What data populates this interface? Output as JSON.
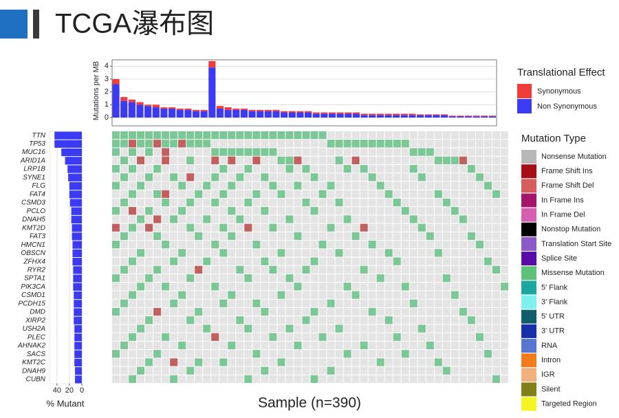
{
  "header": {
    "title": "TCGA瀑布图"
  },
  "chart_data": {
    "type": "oncoplot",
    "top": {
      "ylabel": "Mutations per MB",
      "ylim": [
        0,
        4.5
      ],
      "yticks": [
        0,
        1,
        2,
        3,
        4
      ],
      "grid": true,
      "series": [
        {
          "name": "Non Synonymous",
          "color": "#3b3bf5",
          "values": [
            2.6,
            1.3,
            1.2,
            1.0,
            0.9,
            0.8,
            0.7,
            0.7,
            0.6,
            0.6,
            0.5,
            0.5,
            3.9,
            0.7,
            0.6,
            0.6,
            0.6,
            0.5,
            0.5,
            0.5,
            0.5,
            0.4,
            0.4,
            0.4,
            0.4,
            0.3,
            0.3,
            0.3,
            0.3,
            0.3,
            0.3,
            0.2,
            0.2,
            0.2,
            0.2,
            0.2,
            0.2,
            0.2,
            0.2,
            0.2,
            0.2,
            0.2,
            0.1,
            0.1,
            0.1,
            0.1,
            0.1,
            0.1
          ]
        },
        {
          "name": "Synonymous",
          "color": "#f23b3b",
          "values": [
            0.4,
            0.3,
            0.2,
            0.2,
            0.1,
            0.2,
            0.1,
            0.1,
            0.1,
            0.1,
            0.1,
            0.1,
            0.5,
            0.2,
            0.2,
            0.1,
            0.1,
            0.1,
            0.1,
            0.1,
            0.1,
            0.1,
            0.1,
            0.1,
            0.1,
            0.1,
            0.1,
            0.1,
            0.1,
            0.1,
            0.1,
            0.1,
            0.1,
            0.1,
            0.1,
            0.1,
            0.1,
            0.1,
            0.05,
            0.05,
            0.05,
            0.05,
            0.05,
            0.05,
            0.05,
            0.05,
            0.05,
            0.05
          ]
        }
      ]
    },
    "legend_effect": {
      "title": "Translational Effect",
      "items": [
        {
          "name": "Synonymous",
          "color": "#f23b3b"
        },
        {
          "name": "Non Synonymous",
          "color": "#3b3bf5"
        }
      ]
    },
    "legend_type": {
      "title": "Mutation Type",
      "items": [
        {
          "name": "Nonsense Mutation",
          "color": "#b8b8b8"
        },
        {
          "name": "Frame Shift Ins",
          "color": "#a50f15"
        },
        {
          "name": "Frame Shift Del",
          "color": "#d45d5d"
        },
        {
          "name": "In Frame Ins",
          "color": "#a3156b"
        },
        {
          "name": "In Frame Del",
          "color": "#d55fb0"
        },
        {
          "name": "Nonstop Mutation",
          "color": "#000000"
        },
        {
          "name": "Translation Start Site",
          "color": "#8b59c8"
        },
        {
          "name": "Splice Site",
          "color": "#5a0ca6"
        },
        {
          "name": "Missense Mutation",
          "color": "#5ec17a"
        },
        {
          "name": "5' Flank",
          "color": "#1ea6a0"
        },
        {
          "name": "3' Flank",
          "color": "#7ef0ef"
        },
        {
          "name": "5' UTR",
          "color": "#0f5e6a"
        },
        {
          "name": "3' UTR",
          "color": "#1530a8"
        },
        {
          "name": "RNA",
          "color": "#5676d0"
        },
        {
          "name": "Intron",
          "color": "#f27b1d"
        },
        {
          "name": "IGR",
          "color": "#f1b17c"
        },
        {
          "name": "Silent",
          "color": "#808019"
        },
        {
          "name": "Targeted Region",
          "color": "#f5f524"
        }
      ]
    },
    "genes": [
      "TTN",
      "TP53",
      "MUC16",
      "ARID1A",
      "LRP1B",
      "SYNE1",
      "FLG",
      "FAT4",
      "CSMD3",
      "PCLO",
      "DNAH5",
      "KMT2D",
      "FAT3",
      "HMCN1",
      "OBSCN",
      "ZFHX4",
      "RYR2",
      "SPTA1",
      "PIK3CA",
      "CSMD1",
      "PCDH15",
      "DMD",
      "XIRP2",
      "USH2A",
      "PLEC",
      "AHNAK2",
      "SACS",
      "KMT2C",
      "DNAH9",
      "CUBN"
    ],
    "percent_mutant": [
      44,
      44,
      33,
      27,
      23,
      22,
      20,
      20,
      19,
      17,
      17,
      16,
      16,
      15,
      15,
      15,
      14,
      14,
      14,
      13,
      13,
      13,
      13,
      12,
      12,
      12,
      12,
      12,
      11,
      11
    ],
    "bar_color": "#3b3bf5",
    "xlabel_left": "% Mutant",
    "xlim_left": [
      52,
      0
    ],
    "xticks_left": [
      40,
      20,
      0
    ],
    "xlabel": "Sample (n=390)",
    "missense_color": "#7cc796",
    "frameshift_color": "#c25f5f",
    "missense": [
      [
        0,
        1,
        2,
        3,
        4,
        5,
        6,
        7,
        8,
        9,
        10,
        11,
        12,
        13,
        14,
        15,
        16,
        17,
        18,
        19,
        20,
        21,
        22,
        23,
        24,
        25
      ],
      [
        0,
        1,
        3,
        4,
        6,
        7,
        9,
        10,
        11,
        26,
        27,
        28,
        29,
        30,
        31,
        32,
        33,
        34,
        35
      ],
      [
        0,
        2,
        4,
        12,
        13,
        14,
        15,
        16,
        17,
        18,
        19,
        36,
        37,
        38
      ],
      [
        1,
        9,
        20,
        21,
        27,
        39,
        40,
        41
      ],
      [
        0,
        2,
        5,
        13,
        16,
        21,
        23,
        28,
        30,
        36,
        43
      ],
      [
        1,
        4,
        7,
        12,
        15,
        18,
        24,
        31,
        37,
        44
      ],
      [
        0,
        3,
        8,
        11,
        14,
        19,
        22,
        26,
        32,
        45
      ],
      [
        2,
        5,
        10,
        13,
        17,
        20,
        25,
        33,
        39,
        46
      ],
      [
        1,
        6,
        9,
        12,
        16,
        23,
        27,
        34,
        40
      ],
      [
        0,
        4,
        8,
        14,
        18,
        24,
        35,
        41
      ],
      [
        3,
        7,
        11,
        15,
        21,
        28,
        36,
        42
      ],
      [
        2,
        9,
        13,
        19,
        26,
        37
      ],
      [
        1,
        5,
        10,
        14,
        22,
        29,
        38,
        43
      ],
      [
        0,
        6,
        12,
        17,
        25,
        31,
        44
      ],
      [
        3,
        8,
        13,
        20,
        27,
        33,
        39
      ],
      [
        2,
        7,
        11,
        18,
        24,
        34,
        45
      ],
      [
        1,
        5,
        15,
        19,
        23,
        30,
        46
      ],
      [
        0,
        4,
        9,
        16,
        21,
        32,
        40
      ],
      [
        3,
        6,
        12,
        22,
        28,
        35,
        47
      ],
      [
        2,
        8,
        14,
        20,
        29,
        41
      ],
      [
        1,
        7,
        13,
        17,
        26,
        36
      ],
      [
        0,
        10,
        18,
        24,
        31,
        42
      ],
      [
        4,
        9,
        15,
        23,
        33,
        43
      ],
      [
        3,
        11,
        16,
        21,
        27,
        37
      ],
      [
        2,
        6,
        19,
        25,
        34,
        44
      ],
      [
        1,
        8,
        14,
        22,
        30,
        38
      ],
      [
        0,
        5,
        17,
        28,
        35,
        45
      ],
      [
        4,
        10,
        13,
        20,
        32,
        39
      ],
      [
        3,
        9,
        18,
        26,
        40
      ],
      [
        2,
        7,
        16,
        24,
        46
      ]
    ],
    "frameshift": [
      [],
      [
        2,
        5,
        8
      ],
      [
        6
      ],
      [
        3,
        6,
        12,
        14,
        17,
        22,
        29,
        42
      ],
      [],
      [
        9
      ],
      [],
      [
        6
      ],
      [],
      [
        2
      ],
      [
        5
      ],
      [
        0,
        4,
        16,
        30
      ],
      [],
      [],
      [],
      [],
      [
        10
      ],
      [],
      [],
      [],
      [],
      [
        5
      ],
      [],
      [],
      [
        12
      ],
      [],
      [],
      [
        7
      ],
      [],
      []
    ]
  }
}
